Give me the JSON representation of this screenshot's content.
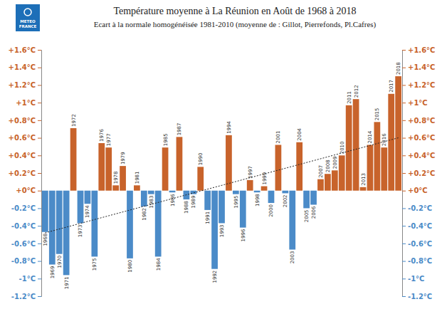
{
  "chart_data": {
    "type": "bar",
    "title": "Température moyenne à La Réunion en Août de 1968 à 2018",
    "subtitle": "Ecart à la normale homogénéisée 1981-2010 (moyenne de : Gillot, Pierrefonds, Pl.Cafres)",
    "logo_text": [
      "METEO",
      "FRANCE"
    ],
    "categories": [
      "1968",
      "1969",
      "1970",
      "1971",
      "1972",
      "1973",
      "1974",
      "1975",
      "1976",
      "1977",
      "1978",
      "1979",
      "1980",
      "1981",
      "1982",
      "1983",
      "1984",
      "1985",
      "1986",
      "1987",
      "1988",
      "1989",
      "1990",
      "1991",
      "1992",
      "1993",
      "1994",
      "1995",
      "1996",
      "1997",
      "1998",
      "1999",
      "2000",
      "2001",
      "2002",
      "2003",
      "2004",
      "2005",
      "2006",
      "2007",
      "2008",
      "2009",
      "2010",
      "2011",
      "2012",
      "2013",
      "2014",
      "2015",
      "2016",
      "2017",
      "2018"
    ],
    "values": [
      -0.47,
      -0.84,
      -0.72,
      -0.96,
      0.71,
      -0.37,
      -0.15,
      -0.75,
      0.54,
      0.49,
      0.06,
      0.28,
      -0.77,
      0.06,
      -0.18,
      -0.04,
      -0.75,
      0.49,
      -0.02,
      0.61,
      -0.1,
      -0.04,
      0.27,
      -0.22,
      -0.89,
      -0.37,
      0.63,
      -0.04,
      -0.42,
      0.12,
      -0.02,
      0.05,
      -0.14,
      0.52,
      -0.03,
      -0.67,
      0.55,
      -0.2,
      -0.16,
      0.13,
      0.19,
      0.23,
      0.4,
      0.97,
      1.04,
      0.04,
      0.52,
      0.78,
      0.49,
      1.1,
      1.3
    ],
    "colors": [
      "#4b8bc8",
      "#4b8bc8",
      "#4b8bc8",
      "#4b8bc8",
      "#c8632b",
      "#4b8bc8",
      "#4b8bc8",
      "#4b8bc8",
      "#c8632b",
      "#c8632b",
      "#c8632b",
      "#c8632b",
      "#4b8bc8",
      "#c8632b",
      "#4b8bc8",
      "#4b8bc8",
      "#4b8bc8",
      "#c8632b",
      "#4b8bc8",
      "#c8632b",
      "#4b8bc8",
      "#4b8bc8",
      "#c8632b",
      "#4b8bc8",
      "#4b8bc8",
      "#4b8bc8",
      "#c8632b",
      "#4b8bc8",
      "#4b8bc8",
      "#c8632b",
      "#4b8bc8",
      "#c8632b",
      "#4b8bc8",
      "#c8632b",
      "#4b8bc8",
      "#4b8bc8",
      "#c8632b",
      "#4b8bc8",
      "#4b8bc8",
      "#c8632b",
      "#c8632b",
      "#c8632b",
      "#c8632b",
      "#c8632b",
      "#c8632b",
      "#c8632b",
      "#c8632b",
      "#c8632b",
      "#c8632b",
      "#c8632b",
      "#c8632b"
    ],
    "ylim": [
      -1.2,
      1.6
    ],
    "yticks": [
      {
        "value": 1.6,
        "label": "+1.6°C"
      },
      {
        "value": 1.4,
        "label": "+1.4°C"
      },
      {
        "value": 1.2,
        "label": "+1.2°C"
      },
      {
        "value": 1,
        "label": "+1°C"
      },
      {
        "value": 0.8,
        "label": "+0.8°C"
      },
      {
        "value": 0.6,
        "label": "+0.6°C"
      },
      {
        "value": 0.4,
        "label": "+0.4°C"
      },
      {
        "value": 0.2,
        "label": "+0.2°C"
      },
      {
        "value": 0,
        "label": "+0°C"
      },
      {
        "value": -0.2,
        "label": "-0.2°C"
      },
      {
        "value": -0.4,
        "label": "-0.4°C"
      },
      {
        "value": -0.6,
        "label": "-0.6°C"
      },
      {
        "value": -0.8,
        "label": "-0.8°C"
      },
      {
        "value": -1,
        "label": "-1°C"
      },
      {
        "value": -1.2,
        "label": "-1.2°C"
      }
    ],
    "y2lim": [
      -1.2,
      1.6
    ],
    "y2ticks": [
      {
        "value": 1.6,
        "label": "+1.6°C"
      },
      {
        "value": 1.4,
        "label": "+1.4°C"
      },
      {
        "value": 1.2,
        "label": "+1.2°C"
      },
      {
        "value": 1,
        "label": "+1°C"
      },
      {
        "value": 0.8,
        "label": "+0.8°C"
      },
      {
        "value": 0.6,
        "label": "+0.6°C"
      },
      {
        "value": 0.4,
        "label": "+0.4°C"
      },
      {
        "value": 0.2,
        "label": "+0.2°C"
      },
      {
        "value": 0,
        "label": "+0°C"
      },
      {
        "value": -0.2,
        "label": "-0.2°C"
      },
      {
        "value": -0.4,
        "label": "-0.4°C"
      },
      {
        "value": -0.6,
        "label": "-0.6°C"
      },
      {
        "value": -0.8,
        "label": "-0.8°C"
      },
      {
        "value": -1,
        "label": "-1°C"
      },
      {
        "value": -1.2,
        "label": "-1.2°C"
      }
    ],
    "trend": {
      "categories": [
        "1968",
        "2018"
      ],
      "values": [
        -0.48,
        0.6
      ],
      "line_style": "dotted"
    },
    "grid": false,
    "tick_labels": "y"
  }
}
